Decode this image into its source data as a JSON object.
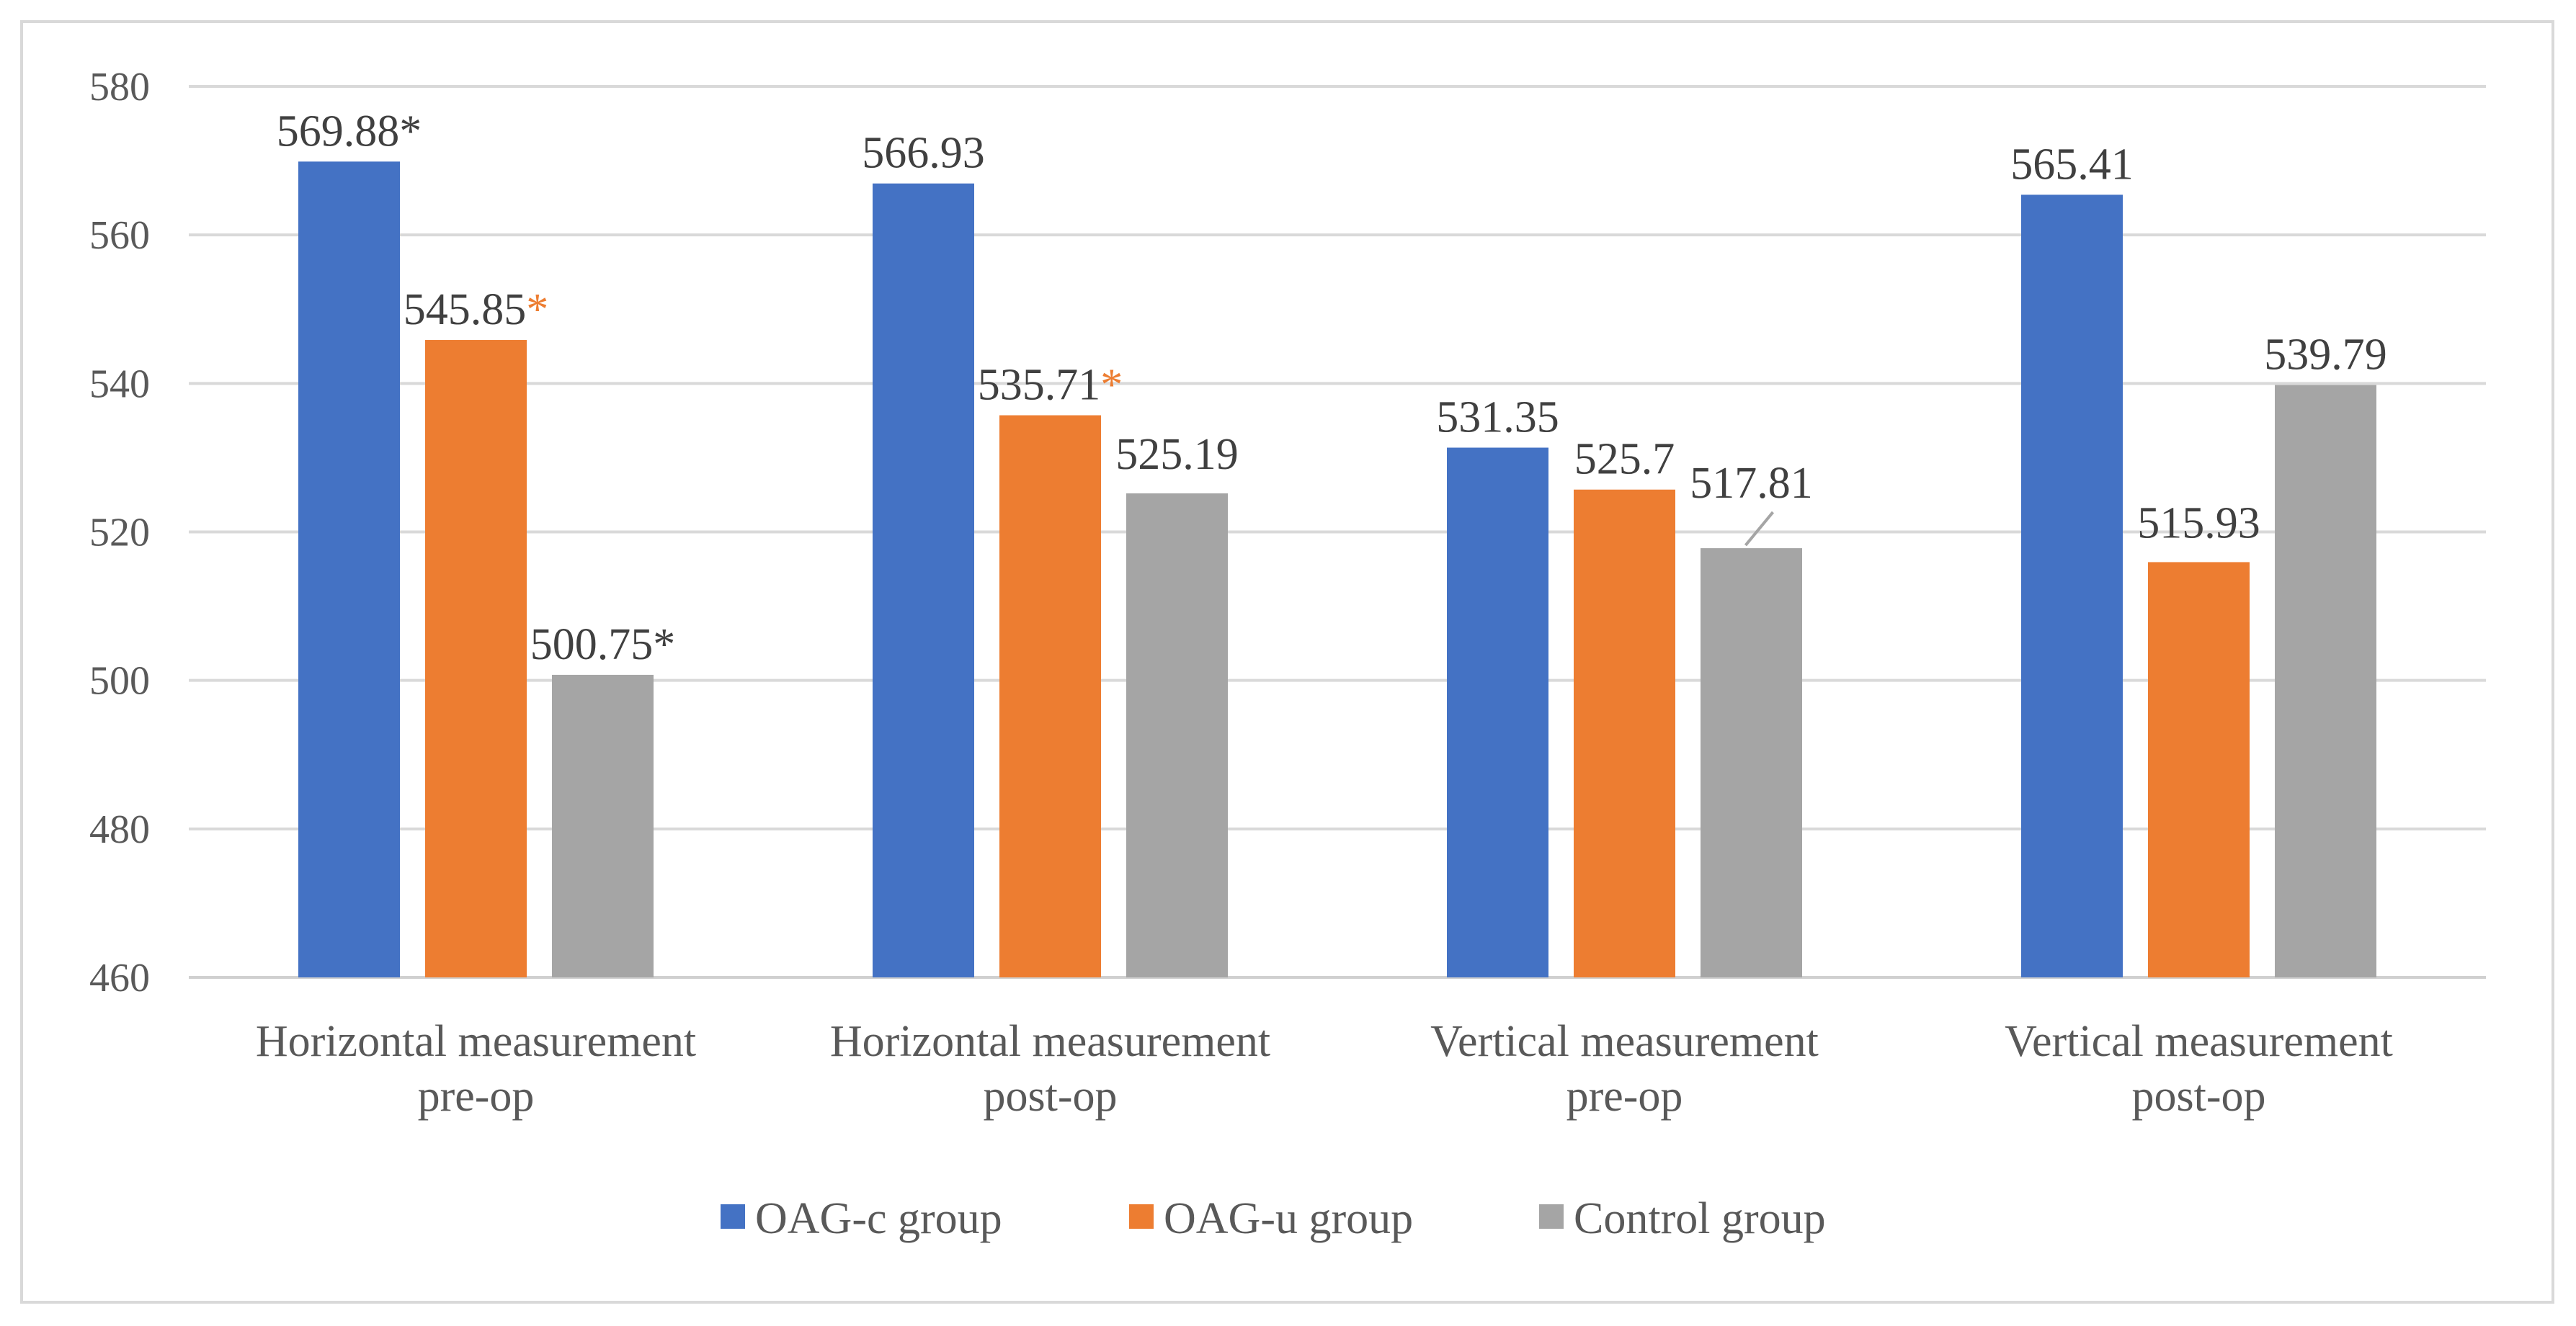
{
  "chart_data": {
    "type": "bar",
    "title": "",
    "xlabel": "",
    "ylabel": "",
    "ylim": [
      460,
      580
    ],
    "yticks": [
      460,
      480,
      500,
      520,
      540,
      560,
      580
    ],
    "grid": true,
    "legend_position": "bottom",
    "categories": [
      [
        "Horizontal measurement",
        "pre-op"
      ],
      [
        "Horizontal measurement",
        "post-op"
      ],
      [
        "Vertical measurement",
        "pre-op"
      ],
      [
        "Vertical measurement",
        "post-op"
      ]
    ],
    "series": [
      {
        "name": "OAG-c group",
        "color": "#4472c4",
        "values": [
          569.88,
          566.93,
          531.35,
          565.41
        ],
        "labels": [
          "569.88",
          "566.93",
          "531.35",
          "565.41"
        ],
        "stars": [
          "*",
          "",
          "",
          ""
        ],
        "star_color": "#404040"
      },
      {
        "name": "OAG-u group",
        "color": "#ed7d31",
        "values": [
          545.85,
          535.71,
          525.7,
          515.93
        ],
        "labels": [
          "545.85",
          "535.71",
          "525.7",
          "515.93"
        ],
        "stars": [
          "*",
          "*",
          "",
          ""
        ],
        "star_color": "#ed7d31"
      },
      {
        "name": "Control group",
        "color": "#a5a5a5",
        "values": [
          500.75,
          525.19,
          517.81,
          539.79
        ],
        "labels": [
          "500.75",
          "525.19",
          "517.81",
          "539.79"
        ],
        "stars": [
          "*",
          "",
          "",
          ""
        ],
        "star_color": "#404040"
      }
    ]
  }
}
